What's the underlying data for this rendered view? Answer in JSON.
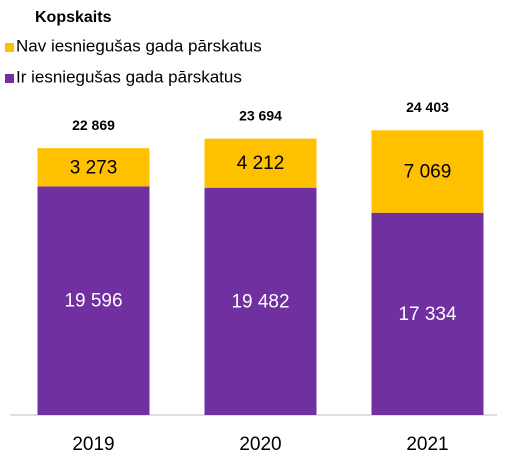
{
  "chart_data": {
    "type": "stacked_bar",
    "totals_name": "Kopskaits",
    "categories": [
      "2019",
      "2020",
      "2021"
    ],
    "series": [
      {
        "name": "Ir iesniegušas gada pārskatus",
        "color": "#7030a0",
        "text_color": "#ffffff",
        "values": [
          19596,
          19482,
          17334
        ],
        "value_labels": [
          "19 596",
          "19 482",
          "17 334"
        ]
      },
      {
        "name": "Nav iesniegušas gada pārskatus",
        "color": "#ffc000",
        "text_color": "#000000",
        "values": [
          3273,
          4212,
          7069
        ],
        "value_labels": [
          "3 273",
          "4 212",
          "7 069"
        ]
      }
    ],
    "totals": [
      22869,
      23694,
      24403
    ],
    "total_labels": [
      "22 869",
      "23 694",
      "24 403"
    ],
    "ylim": [
      0,
      30000
    ]
  }
}
